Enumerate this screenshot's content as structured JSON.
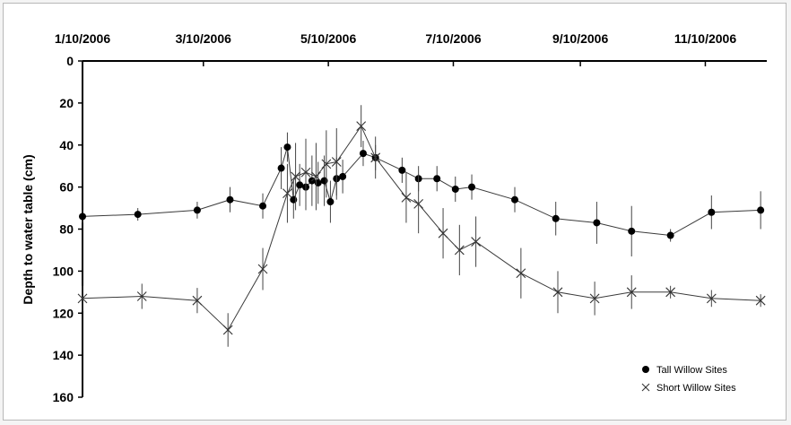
{
  "chart_data": {
    "type": "scatter",
    "title": "",
    "xlabel": "",
    "ylabel": "Depth to water table (cm)",
    "x_ticks": [
      "1/10/2006",
      "3/10/2006",
      "5/10/2006",
      "7/10/2006",
      "9/10/2006",
      "11/10/2006"
    ],
    "y_ticks": [
      "0",
      "20",
      "40",
      "60",
      "80",
      "100",
      "120",
      "140",
      "160"
    ],
    "xlim": [
      "2006-01-10",
      "2006-12-10"
    ],
    "ylim": [
      160,
      0
    ],
    "y_reversed": true,
    "x_axis_position": "top",
    "grid": false,
    "legend_position": "bottom-right",
    "series": [
      {
        "name": "Tall Willow Sites",
        "marker": "filled-circle",
        "color": "#000000",
        "points": [
          {
            "x": "2006-01-10",
            "y": 74,
            "err": 3
          },
          {
            "x": "2006-02-06",
            "y": 73,
            "err": 3
          },
          {
            "x": "2006-03-07",
            "y": 71,
            "err": 4
          },
          {
            "x": "2006-03-23",
            "y": 66,
            "err": 6
          },
          {
            "x": "2006-04-08",
            "y": 69,
            "err": 6
          },
          {
            "x": "2006-04-17",
            "y": 51,
            "err": 10
          },
          {
            "x": "2006-04-20",
            "y": 41,
            "err": 7
          },
          {
            "x": "2006-04-23",
            "y": 66,
            "err": 9
          },
          {
            "x": "2006-04-26",
            "y": 59,
            "err": 10
          },
          {
            "x": "2006-04-29",
            "y": 60,
            "err": 11
          },
          {
            "x": "2006-05-02",
            "y": 57,
            "err": 12
          },
          {
            "x": "2006-05-05",
            "y": 58,
            "err": 10
          },
          {
            "x": "2006-05-08",
            "y": 57,
            "err": 12
          },
          {
            "x": "2006-05-11",
            "y": 67,
            "err": 10
          },
          {
            "x": "2006-05-14",
            "y": 56,
            "err": 10
          },
          {
            "x": "2006-05-17",
            "y": 55,
            "err": 8
          },
          {
            "x": "2006-05-27",
            "y": 44,
            "err": 6
          },
          {
            "x": "2006-06-02",
            "y": 46,
            "err": 6
          },
          {
            "x": "2006-06-15",
            "y": 52,
            "err": 6
          },
          {
            "x": "2006-06-23",
            "y": 56,
            "err": 6
          },
          {
            "x": "2006-07-02",
            "y": 56,
            "err": 6
          },
          {
            "x": "2006-07-11",
            "y": 61,
            "err": 6
          },
          {
            "x": "2006-07-19",
            "y": 60,
            "err": 6
          },
          {
            "x": "2006-08-09",
            "y": 66,
            "err": 6
          },
          {
            "x": "2006-08-29",
            "y": 75,
            "err": 8
          },
          {
            "x": "2006-09-18",
            "y": 77,
            "err": 10
          },
          {
            "x": "2006-10-05",
            "y": 81,
            "err": 12
          },
          {
            "x": "2006-10-24",
            "y": 83,
            "err": 3
          },
          {
            "x": "2006-11-13",
            "y": 72,
            "err": 8
          },
          {
            "x": "2006-12-07",
            "y": 71,
            "err": 9
          }
        ]
      },
      {
        "name": "Short Willow Sites",
        "marker": "x",
        "color": "#000000",
        "points": [
          {
            "x": "2006-01-10",
            "y": 113,
            "err": 6
          },
          {
            "x": "2006-02-08",
            "y": 112,
            "err": 6
          },
          {
            "x": "2006-03-07",
            "y": 114,
            "err": 6
          },
          {
            "x": "2006-03-22",
            "y": 128,
            "err": 8
          },
          {
            "x": "2006-04-08",
            "y": 99,
            "err": 10
          },
          {
            "x": "2006-04-20",
            "y": 63,
            "err": 14
          },
          {
            "x": "2006-04-24",
            "y": 55,
            "err": 16
          },
          {
            "x": "2006-04-29",
            "y": 53,
            "err": 16
          },
          {
            "x": "2006-05-04",
            "y": 55,
            "err": 16
          },
          {
            "x": "2006-05-09",
            "y": 49,
            "err": 16
          },
          {
            "x": "2006-05-14",
            "y": 48,
            "err": 16
          },
          {
            "x": "2006-05-26",
            "y": 31,
            "err": 10
          },
          {
            "x": "2006-06-02",
            "y": 46,
            "err": 10
          },
          {
            "x": "2006-06-17",
            "y": 65,
            "err": 12
          },
          {
            "x": "2006-06-23",
            "y": 68,
            "err": 14
          },
          {
            "x": "2006-07-05",
            "y": 82,
            "err": 12
          },
          {
            "x": "2006-07-13",
            "y": 90,
            "err": 12
          },
          {
            "x": "2006-07-21",
            "y": 86,
            "err": 12
          },
          {
            "x": "2006-08-12",
            "y": 101,
            "err": 12
          },
          {
            "x": "2006-08-30",
            "y": 110,
            "err": 10
          },
          {
            "x": "2006-09-17",
            "y": 113,
            "err": 8
          },
          {
            "x": "2006-10-05",
            "y": 110,
            "err": 8
          },
          {
            "x": "2006-10-24",
            "y": 110,
            "err": 3
          },
          {
            "x": "2006-11-13",
            "y": 113,
            "err": 4
          },
          {
            "x": "2006-12-07",
            "y": 114,
            "err": 3
          }
        ]
      }
    ]
  }
}
